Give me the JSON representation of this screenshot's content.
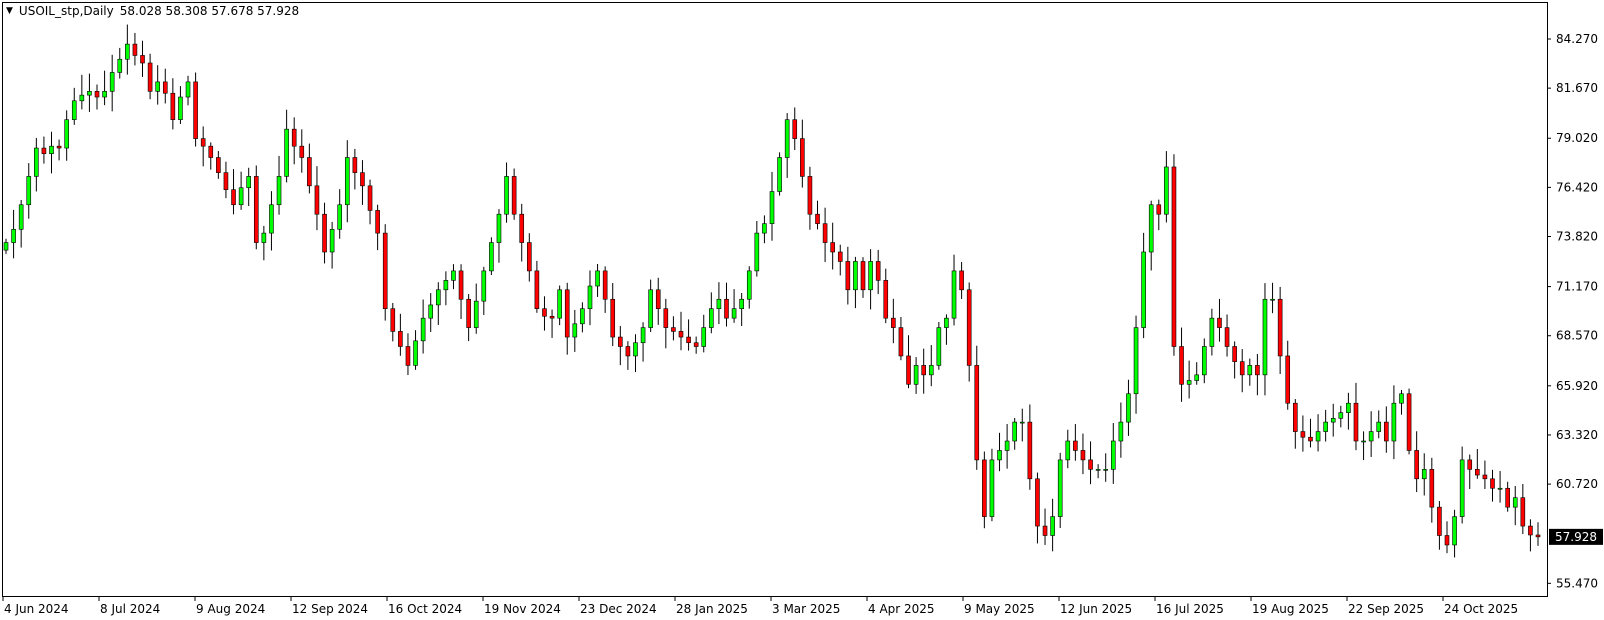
{
  "header": {
    "menu_icon": "triangle-down-icon",
    "symbol": "USOIL_stp,Daily",
    "ohlc": "58.028 58.308 57.678 57.928"
  },
  "colors": {
    "bull": "#00ff00",
    "bear": "#ff0000",
    "wick": "#000000",
    "price_tag_bg": "#000000",
    "price_tag_fg": "#ffffff"
  },
  "chart_data": {
    "type": "candlestick",
    "title": "USOIL_stp,Daily",
    "ylim": [
      54.5,
      86.2
    ],
    "y_ticks": [
      "84.270",
      "81.670",
      "79.020",
      "76.420",
      "73.820",
      "71.170",
      "68.570",
      "65.920",
      "63.320",
      "60.720",
      "57.928",
      "55.470"
    ],
    "y_tick_values": [
      84.27,
      81.67,
      79.02,
      76.42,
      73.82,
      71.17,
      68.57,
      65.92,
      63.32,
      60.72,
      55.47
    ],
    "current_price": 57.928,
    "current_price_label": "57.928",
    "x_ticks": [
      "4 Jun 2024",
      "8 Jul 2024",
      "9 Aug 2024",
      "12 Sep 2024",
      "16 Oct 2024",
      "19 Nov 2024",
      "23 Dec 2024",
      "28 Jan 2025",
      "3 Mar 2025",
      "4 Apr 2025",
      "9 May 2025",
      "12 Jun 2025",
      "16 Jul 2025",
      "19 Aug 2025",
      "22 Sep 2025",
      "24 Oct 2025"
    ],
    "closes": [
      73.5,
      74.2,
      75.5,
      77.0,
      78.5,
      78.2,
      78.6,
      78.5,
      80.0,
      81.0,
      81.3,
      81.5,
      81.2,
      81.5,
      82.5,
      83.2,
      84.0,
      83.4,
      83.0,
      81.5,
      82.0,
      81.4,
      80.0,
      81.2,
      82.0,
      79.0,
      78.6,
      78.0,
      77.2,
      76.3,
      75.5,
      76.4,
      77.0,
      73.5,
      74.0,
      75.5,
      77.0,
      79.5,
      78.6,
      78.0,
      76.5,
      75.0,
      73.0,
      74.2,
      75.5,
      78.0,
      77.2,
      76.5,
      75.2,
      74.0,
      70.0,
      68.8,
      68.0,
      67.0,
      68.3,
      69.5,
      70.2,
      71.0,
      71.5,
      72.0,
      70.5,
      69.0,
      70.4,
      72.0,
      73.5,
      75.0,
      77.0,
      75.0,
      73.5,
      72.0,
      70.0,
      69.6,
      69.5,
      71.0,
      68.5,
      69.2,
      70.0,
      71.2,
      72.0,
      70.5,
      68.5,
      68.0,
      67.5,
      68.2,
      69.0,
      71.0,
      70.0,
      69.0,
      68.8,
      68.5,
      68.2,
      68.0,
      69.0,
      70.0,
      70.5,
      69.5,
      70.0,
      70.5,
      72.0,
      74.0,
      74.5,
      76.2,
      78.0,
      80.0,
      79.0,
      77.0,
      75.0,
      74.5,
      73.5,
      73.0,
      72.5,
      71.0,
      72.5,
      71.0,
      72.5,
      71.5,
      69.5,
      69.0,
      67.5,
      66.0,
      67.0,
      66.5,
      67.0,
      69.0,
      69.5,
      72.0,
      71.0,
      67.0,
      62.0,
      59.0,
      62.0,
      62.5,
      63.0,
      64.0,
      64.0,
      61.0,
      58.5,
      58.0,
      59.0,
      62.0,
      63.0,
      62.5,
      62.0,
      61.5,
      61.5,
      61.5,
      63.0,
      64.0,
      65.5,
      69.0,
      73.0,
      75.5,
      75.0,
      77.5,
      68.0,
      66.0,
      66.2,
      66.5,
      68.0,
      69.5,
      69.0,
      68.0,
      67.2,
      66.5,
      67.0,
      66.5,
      70.5,
      70.5,
      67.5,
      65.0,
      63.5,
      63.2,
      63.0,
      63.5,
      64.0,
      64.2,
      64.5,
      65.0,
      63.0,
      63.0,
      63.5,
      64.0,
      63.0,
      65.0,
      65.5,
      62.5,
      61.0,
      61.5,
      59.5,
      58.0,
      57.5,
      59.0,
      62.0,
      61.5,
      61.2,
      61.0,
      60.5,
      60.5,
      59.5,
      60.0,
      58.5,
      58.028,
      57.928
    ]
  }
}
